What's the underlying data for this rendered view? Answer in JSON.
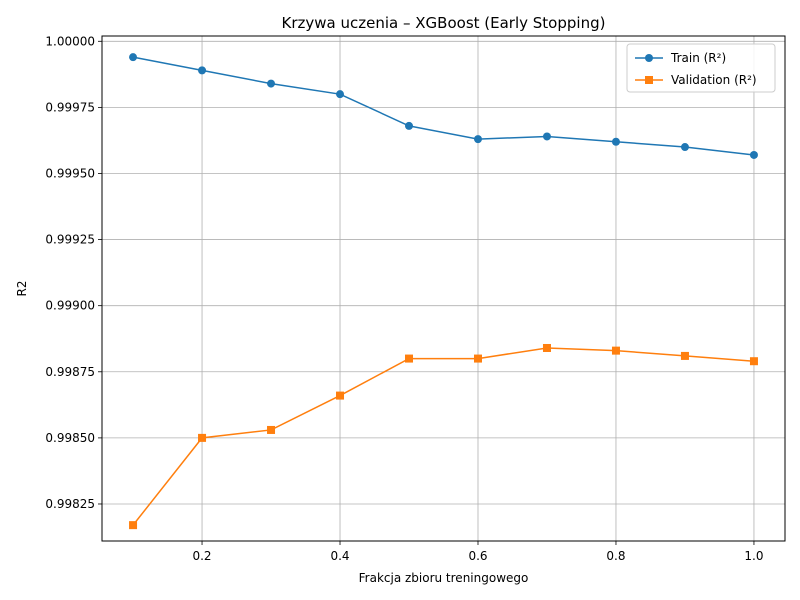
{
  "chart_data": {
    "type": "line",
    "title": "Krzywa uczenia – XGBoost (Early Stopping)",
    "xlabel": "Frakcja zbioru treningowego",
    "ylabel": "R2",
    "x": [
      0.1,
      0.2,
      0.3,
      0.4,
      0.5,
      0.6,
      0.7,
      0.8,
      0.9,
      1.0
    ],
    "xlim": [
      0.055,
      1.045
    ],
    "ylim": [
      0.99811,
      1.00002
    ],
    "xticks": [
      0.2,
      0.4,
      0.6,
      0.8,
      1.0
    ],
    "xtick_labels": [
      "0.2",
      "0.4",
      "0.6",
      "0.8",
      "1.0"
    ],
    "yticks": [
      0.99825,
      0.9985,
      0.99875,
      0.999,
      0.99925,
      0.9995,
      0.99975,
      1.0
    ],
    "ytick_labels": [
      "0.99825",
      "0.99850",
      "0.99875",
      "0.99900",
      "0.99925",
      "0.99950",
      "0.99975",
      "1.00000"
    ],
    "grid": true,
    "legend_position": "top-right",
    "series": [
      {
        "name": "Train (R²)",
        "color": "#1f77b4",
        "marker": "circle",
        "values": [
          0.99994,
          0.99989,
          0.99984,
          0.9998,
          0.99968,
          0.99963,
          0.99964,
          0.99962,
          0.9996,
          0.99957
        ]
      },
      {
        "name": "Validation (R²)",
        "color": "#ff7f0e",
        "marker": "square",
        "values": [
          0.99817,
          0.9985,
          0.99853,
          0.99866,
          0.9988,
          0.9988,
          0.99884,
          0.99883,
          0.99881,
          0.99879
        ]
      }
    ]
  }
}
